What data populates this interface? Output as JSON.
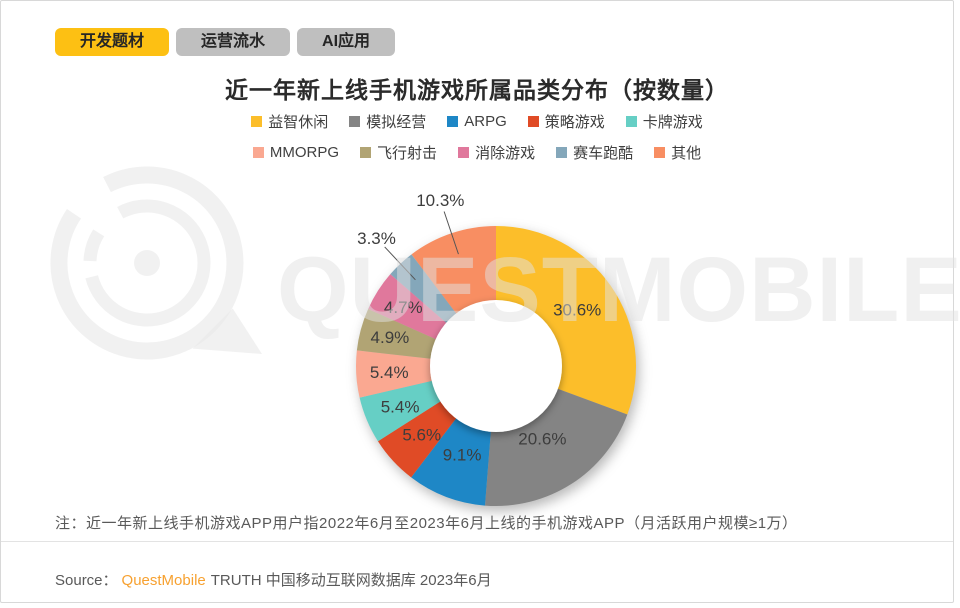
{
  "tabs": [
    {
      "label": "开发题材",
      "active": true
    },
    {
      "label": "运营流水",
      "active": false
    },
    {
      "label": "AI应用",
      "active": false
    }
  ],
  "chart_data": {
    "type": "pie",
    "subtype": "donut",
    "title": "近一年新上线手机游戏所属品类分布（按数量）",
    "start_angle_deg": 0,
    "direction": "clockwise",
    "legend_position": "top",
    "legend_rows": [
      5,
      5
    ],
    "slices": [
      {
        "name": "益智休闲",
        "value": 30.6,
        "label": "30.6%",
        "color": "#FCBE2A",
        "label_placement": "inside",
        "label_r": 99
      },
      {
        "name": "模拟经营",
        "value": 20.6,
        "label": "20.6%",
        "color": "#848484",
        "label_placement": "inside",
        "label_r": 86
      },
      {
        "name": "ARPG",
        "value": 9.1,
        "label": "9.1%",
        "color": "#1E87C6",
        "label_placement": "inside",
        "label_r": 95
      },
      {
        "name": "策略游戏",
        "value": 5.6,
        "label": "5.6%",
        "color": "#E04B26",
        "label_placement": "inside",
        "label_r": 101
      },
      {
        "name": "卡牌游戏",
        "value": 5.4,
        "label": "5.4%",
        "color": "#66CFC5",
        "label_placement": "inside",
        "label_r": 104
      },
      {
        "name": "MMORPG",
        "value": 5.4,
        "label": "5.4%",
        "color": "#FAA891",
        "label_placement": "inside",
        "label_r": 107
      },
      {
        "name": "飞行射击",
        "value": 4.9,
        "label": "4.9%",
        "color": "#B1A474",
        "label_placement": "inside",
        "label_r": 110
      },
      {
        "name": "消除游戏",
        "value": 4.7,
        "label": "4.7%",
        "color": "#E0789C",
        "label_placement": "inside",
        "label_r": 110
      },
      {
        "name": "赛车跑酷",
        "value": 3.3,
        "label": "3.3%",
        "color": "#84A7BA",
        "label_placement": "callout",
        "label_r": 175
      },
      {
        "name": "其他",
        "value": 10.3,
        "label": "10.3%",
        "color": "#F88E62",
        "label_placement": "callout",
        "label_r": 175
      }
    ]
  },
  "note": "注：近一年新上线手机游戏APP用户指2022年6月至2023年6月上线的手机游戏APP（月活跃用户规模≥1万）",
  "source": {
    "prefix": "Source：",
    "brand": "QuestMobile",
    "rest": "TRUTH 中国移动互联网数据库 2023年6月"
  },
  "watermark": {
    "text": "QUESTMOBILE"
  },
  "colors": {
    "active_tab": "#FDC013",
    "inactive_tab": "#BFBFBF",
    "brand_orange": "#F7A130",
    "label_text": "#3d3d3d"
  }
}
